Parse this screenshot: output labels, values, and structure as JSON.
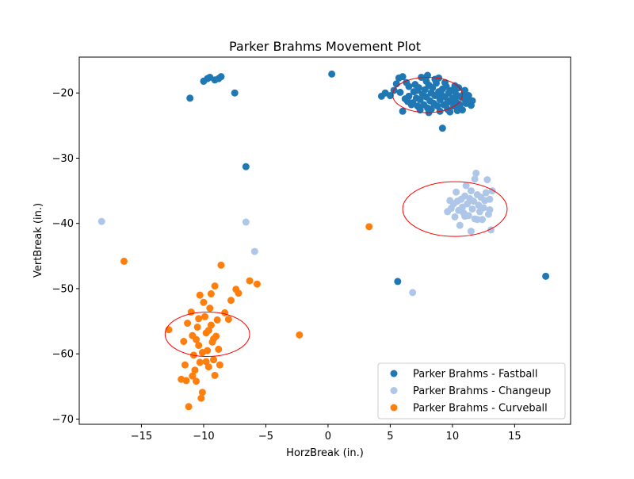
{
  "chart_data": {
    "type": "scatter",
    "title": "Parker Brahms Movement Plot",
    "xlabel": "HorzBreak (in.)",
    "ylabel": "VertBreak (in.)",
    "xlim": [
      -20,
      19.5
    ],
    "ylim": [
      -70.8,
      -14.5
    ],
    "xticks": [
      -15,
      -10,
      -5,
      0,
      5,
      10,
      15
    ],
    "yticks": [
      -70,
      -60,
      -50,
      -40,
      -30,
      -20
    ],
    "legend_position": "lower-right",
    "series": [
      {
        "name": "Parker Brahms - Fastball",
        "color": "#1f77b4",
        "points": [
          [
            -11.1,
            -20.8
          ],
          [
            -10.0,
            -18.2
          ],
          [
            -9.7,
            -17.8
          ],
          [
            -9.5,
            -17.6
          ],
          [
            -9.1,
            -18.0
          ],
          [
            -8.8,
            -17.8
          ],
          [
            -8.6,
            -17.5
          ],
          [
            -7.5,
            -20.0
          ],
          [
            0.3,
            -17.1
          ],
          [
            -6.6,
            -31.3
          ],
          [
            5.6,
            -48.9
          ],
          [
            17.5,
            -48.1
          ],
          [
            9.2,
            -25.4
          ],
          [
            4.3,
            -20.5
          ],
          [
            4.6,
            -20.0
          ],
          [
            5.0,
            -20.4
          ],
          [
            5.3,
            -19.6
          ],
          [
            5.5,
            -18.6
          ],
          [
            5.7,
            -17.7
          ],
          [
            6.0,
            -17.5
          ],
          [
            6.0,
            -22.8
          ],
          [
            6.5,
            -19.0
          ],
          [
            6.5,
            -20.5
          ],
          [
            6.8,
            -21.5
          ],
          [
            6.9,
            -19.8
          ],
          [
            7.1,
            -20.8
          ],
          [
            7.2,
            -22.0
          ],
          [
            7.3,
            -19.2
          ],
          [
            7.4,
            -21.0
          ],
          [
            7.5,
            -17.6
          ],
          [
            7.6,
            -20.2
          ],
          [
            7.7,
            -21.8
          ],
          [
            7.8,
            -19.5
          ],
          [
            7.9,
            -20.6
          ],
          [
            8.0,
            -17.3
          ],
          [
            8.0,
            -22.3
          ],
          [
            8.1,
            -18.8
          ],
          [
            8.2,
            -21.2
          ],
          [
            8.3,
            -20.0
          ],
          [
            8.4,
            -19.2
          ],
          [
            8.5,
            -21.6
          ],
          [
            8.6,
            -20.4
          ],
          [
            8.7,
            -18.5
          ],
          [
            8.8,
            -22.0
          ],
          [
            8.9,
            -19.8
          ],
          [
            9.0,
            -21.0
          ],
          [
            9.1,
            -20.2
          ],
          [
            9.2,
            -19.4
          ],
          [
            9.3,
            -21.8
          ],
          [
            9.4,
            -20.6
          ],
          [
            9.5,
            -19.0
          ],
          [
            9.6,
            -22.5
          ],
          [
            9.7,
            -20.0
          ],
          [
            9.8,
            -21.2
          ],
          [
            9.9,
            -19.6
          ],
          [
            10.0,
            -20.8
          ],
          [
            10.1,
            -22.0
          ],
          [
            10.2,
            -19.8
          ],
          [
            10.3,
            -21.4
          ],
          [
            10.4,
            -20.4
          ],
          [
            10.5,
            -19.2
          ],
          [
            10.6,
            -21.8
          ],
          [
            10.7,
            -20.6
          ],
          [
            10.8,
            -22.6
          ],
          [
            10.9,
            -20.2
          ],
          [
            11.0,
            -21.0
          ],
          [
            11.1,
            -21.6
          ],
          [
            11.3,
            -20.4
          ],
          [
            11.5,
            -21.9
          ],
          [
            11.6,
            -21.2
          ],
          [
            6.2,
            -20.9
          ],
          [
            6.7,
            -21.8
          ],
          [
            7.0,
            -18.7
          ],
          [
            7.4,
            -22.6
          ],
          [
            7.9,
            -18.2
          ],
          [
            8.3,
            -22.5
          ],
          [
            8.6,
            -17.9
          ],
          [
            9.0,
            -22.8
          ],
          [
            9.4,
            -18.4
          ],
          [
            9.8,
            -22.9
          ],
          [
            10.2,
            -18.9
          ],
          [
            10.6,
            -22.3
          ],
          [
            11.0,
            -19.6
          ],
          [
            6.4,
            -21.3
          ],
          [
            7.2,
            -19.6
          ],
          [
            8.1,
            -23.0
          ],
          [
            8.9,
            -17.7
          ],
          [
            9.6,
            -21.5
          ],
          [
            10.4,
            -22.7
          ],
          [
            11.2,
            -20.8
          ],
          [
            5.8,
            -19.9
          ],
          [
            6.3,
            -18.4
          ]
        ]
      },
      {
        "name": "Parker Brahms - Changeup",
        "color": "#aec7e8",
        "points": [
          [
            -18.2,
            -39.7
          ],
          [
            -6.6,
            -39.8
          ],
          [
            -5.9,
            -44.3
          ],
          [
            6.8,
            -50.6
          ],
          [
            9.6,
            -38.2
          ],
          [
            9.9,
            -37.7
          ],
          [
            10.1,
            -37.0
          ],
          [
            10.3,
            -35.2
          ],
          [
            10.4,
            -36.6
          ],
          [
            10.5,
            -38.0
          ],
          [
            10.6,
            -40.3
          ],
          [
            10.7,
            -36.3
          ],
          [
            10.8,
            -37.5
          ],
          [
            10.9,
            -38.4
          ],
          [
            11.0,
            -35.8
          ],
          [
            11.1,
            -34.2
          ],
          [
            11.2,
            -37.0
          ],
          [
            11.3,
            -38.8
          ],
          [
            11.4,
            -36.2
          ],
          [
            11.5,
            -35.0
          ],
          [
            11.5,
            -41.2
          ],
          [
            11.6,
            -37.8
          ],
          [
            11.7,
            -36.6
          ],
          [
            11.8,
            -33.2
          ],
          [
            11.8,
            -39.3
          ],
          [
            11.9,
            -32.3
          ],
          [
            12.0,
            -35.6
          ],
          [
            12.1,
            -37.2
          ],
          [
            12.2,
            -38.2
          ],
          [
            12.3,
            -36.0
          ],
          [
            12.4,
            -39.4
          ],
          [
            12.5,
            -37.6
          ],
          [
            12.6,
            -36.5
          ],
          [
            12.7,
            -35.3
          ],
          [
            12.8,
            -33.3
          ],
          [
            12.9,
            -38.6
          ],
          [
            13.0,
            -36.3
          ],
          [
            13.0,
            -37.9
          ],
          [
            13.1,
            -41.0
          ],
          [
            13.2,
            -35.0
          ],
          [
            9.8,
            -36.5
          ],
          [
            10.2,
            -39.0
          ],
          [
            11.0,
            -38.9
          ],
          [
            12.0,
            -39.4
          ]
        ]
      },
      {
        "name": "Parker Brahms - Curveball",
        "color": "#ff7f0e",
        "points": [
          [
            -16.4,
            -45.8
          ],
          [
            -12.8,
            -56.3
          ],
          [
            -11.8,
            -63.9
          ],
          [
            -11.4,
            -64.1
          ],
          [
            -11.2,
            -68.1
          ],
          [
            -11.6,
            -58.1
          ],
          [
            -11.5,
            -61.7
          ],
          [
            -11.0,
            -53.6
          ],
          [
            -10.9,
            -57.2
          ],
          [
            -10.8,
            -60.2
          ],
          [
            -10.7,
            -62.5
          ],
          [
            -10.6,
            -64.2
          ],
          [
            -10.5,
            -55.9
          ],
          [
            -10.4,
            -58.7
          ],
          [
            -10.3,
            -61.3
          ],
          [
            -10.2,
            -66.8
          ],
          [
            -10.1,
            -65.9
          ],
          [
            -10.0,
            -52.1
          ],
          [
            -9.9,
            -54.3
          ],
          [
            -9.8,
            -56.8
          ],
          [
            -9.7,
            -59.5
          ],
          [
            -9.6,
            -62.0
          ],
          [
            -9.5,
            -53.0
          ],
          [
            -9.4,
            -55.6
          ],
          [
            -9.3,
            -58.2
          ],
          [
            -9.2,
            -60.9
          ],
          [
            -9.1,
            -63.3
          ],
          [
            -9.0,
            -57.3
          ],
          [
            -8.9,
            -54.8
          ],
          [
            -8.8,
            -59.3
          ],
          [
            -8.7,
            -61.7
          ],
          [
            -10.3,
            -51.0
          ],
          [
            -9.4,
            -50.8
          ],
          [
            -9.1,
            -49.6
          ],
          [
            -8.6,
            -46.4
          ],
          [
            -8.3,
            -53.7
          ],
          [
            -8.0,
            -54.7
          ],
          [
            -7.8,
            -51.8
          ],
          [
            -7.4,
            -50.1
          ],
          [
            -7.2,
            -50.7
          ],
          [
            -6.3,
            -48.8
          ],
          [
            -5.7,
            -49.3
          ],
          [
            -11.3,
            -55.3
          ],
          [
            -10.6,
            -57.8
          ],
          [
            -10.1,
            -59.8
          ],
          [
            -9.6,
            -56.4
          ],
          [
            -9.2,
            -57.7
          ],
          [
            -10.9,
            -63.4
          ],
          [
            -10.4,
            -54.6
          ],
          [
            -9.8,
            -61.2
          ],
          [
            -2.3,
            -57.1
          ],
          [
            3.3,
            -40.5
          ]
        ]
      }
    ],
    "ellipses": [
      {
        "series": "Parker Brahms - Fastball",
        "cx": 8.0,
        "cy": -20.3,
        "rx": 2.8,
        "ry": 2.7,
        "color": "#ff0000"
      },
      {
        "series": "Parker Brahms - Changeup",
        "cx": 10.2,
        "cy": -37.8,
        "rx": 4.2,
        "ry": 4.2,
        "color": "#ff0000"
      },
      {
        "series": "Parker Brahms - Curveball",
        "cx": -9.7,
        "cy": -57.0,
        "rx": 3.4,
        "ry": 3.4,
        "color": "#ff0000"
      }
    ]
  }
}
